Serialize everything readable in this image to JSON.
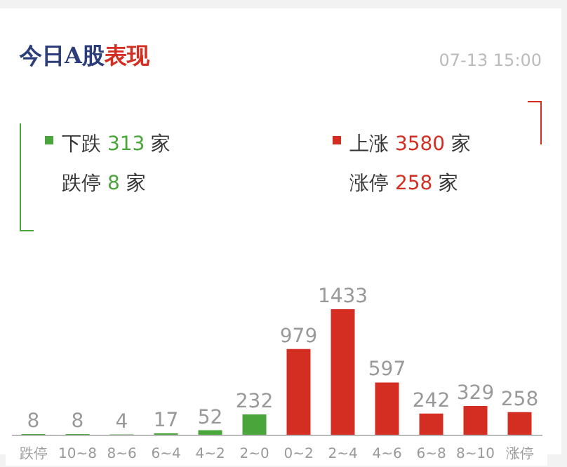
{
  "chart_data": {
    "type": "bar",
    "title": "今日A股表现",
    "subtitle": "07-13 15:00",
    "annotations": [
      "下跌 313 家",
      "跌停 8 家",
      "上涨 3580 家",
      "涨停 258 家"
    ],
    "categories": [
      "跌停",
      "10~8",
      "8~6",
      "6~4",
      "4~2",
      "2~0",
      "0~2",
      "2~4",
      "4~6",
      "6~8",
      "8~10",
      "涨停"
    ],
    "values": [
      8,
      8,
      4,
      17,
      52,
      232,
      979,
      1433,
      597,
      242,
      329,
      258
    ],
    "colors": [
      "#4aa53a",
      "#4aa53a",
      "#4aa53a",
      "#4aa53a",
      "#4aa53a",
      "#4aa53a",
      "#d42d21",
      "#d42d21",
      "#d42d21",
      "#d42d21",
      "#d42d21",
      "#d42d21"
    ],
    "data_labels": true
  }
}
